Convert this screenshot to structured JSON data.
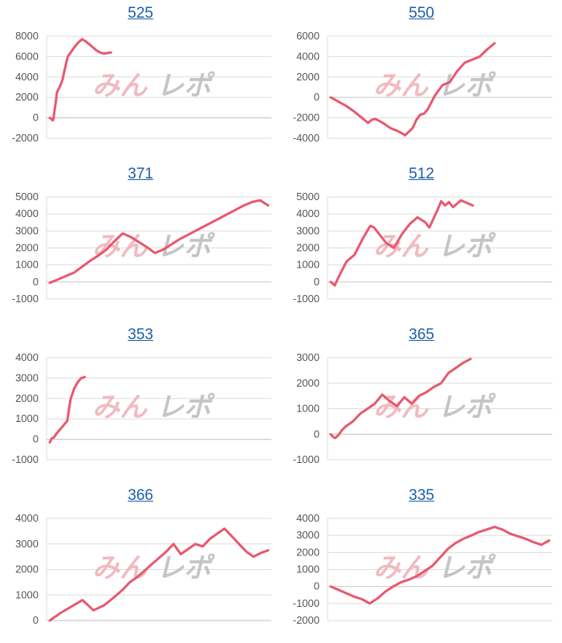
{
  "colors": {
    "line": "#e8586f",
    "grid": "#dddddd",
    "axis": "#cccccc",
    "title": "#1a5fa8",
    "watermark_pink": "#eeb0b7",
    "watermark_gray": "#bbbbbb"
  },
  "watermark": "みんレポ",
  "chart_data": [
    {
      "type": "line",
      "title": "525",
      "ylim": [
        -2000,
        8000
      ],
      "ticks": [
        8000,
        6000,
        4000,
        2000,
        0,
        -2000
      ],
      "grid": true,
      "series": [
        {
          "x": [
            0,
            2,
            4,
            5,
            6,
            8,
            10,
            12,
            15,
            18,
            20,
            25,
            30,
            35,
            40,
            45,
            50,
            55,
            60,
            65,
            70,
            75,
            80,
            85
          ],
          "values": [
            0,
            -100,
            -250,
            -150,
            400,
            1400,
            2500,
            2800,
            3200,
            3800,
            4500,
            6000,
            6500,
            7000,
            7400,
            7700,
            7500,
            7200,
            6900,
            6600,
            6400,
            6300,
            6350,
            6400
          ]
        }
      ]
    },
    {
      "type": "line",
      "title": "550",
      "ylim": [
        -4000,
        6000
      ],
      "ticks": [
        6000,
        4000,
        2000,
        0,
        -2000,
        -4000
      ],
      "grid": true,
      "series": [
        {
          "x": [
            0,
            10,
            20,
            30,
            40,
            50,
            55,
            60,
            70,
            80,
            90,
            100,
            110,
            115,
            120,
            125,
            130,
            140,
            150,
            160,
            170,
            180,
            190,
            200,
            210,
            220
          ],
          "values": [
            0,
            -400,
            -800,
            -1300,
            -1900,
            -2500,
            -2200,
            -2100,
            -2500,
            -3000,
            -3300,
            -3700,
            -3000,
            -2200,
            -1700,
            -1600,
            -1200,
            200,
            1200,
            1500,
            2600,
            3400,
            3700,
            4000,
            4700,
            5300
          ]
        }
      ]
    },
    {
      "type": "line",
      "title": "371",
      "ylim": [
        -1000,
        5000
      ],
      "ticks": [
        5000,
        4000,
        3000,
        2000,
        1000,
        0,
        -1000
      ],
      "grid": true,
      "series": [
        {
          "x": [
            0,
            10,
            20,
            30,
            40,
            50,
            60,
            70,
            80,
            90,
            100,
            110,
            120,
            130,
            140,
            150,
            160,
            170,
            180,
            190,
            200,
            210,
            220,
            230,
            240,
            250,
            260,
            270
          ],
          "values": [
            -50,
            150,
            350,
            550,
            900,
            1250,
            1550,
            1900,
            2400,
            2850,
            2650,
            2350,
            2050,
            1700,
            1900,
            2200,
            2500,
            2750,
            3000,
            3250,
            3500,
            3750,
            4000,
            4250,
            4500,
            4700,
            4800,
            4500
          ]
        }
      ]
    },
    {
      "type": "line",
      "title": "512",
      "ylim": [
        -1000,
        5000
      ],
      "ticks": [
        5000,
        4000,
        3000,
        2000,
        1000,
        0,
        -1000
      ],
      "grid": true,
      "series": [
        {
          "x": [
            0,
            5,
            10,
            20,
            30,
            40,
            50,
            55,
            60,
            70,
            80,
            90,
            100,
            110,
            120,
            125,
            130,
            135,
            140,
            145,
            150,
            155,
            160,
            165,
            170,
            180
          ],
          "values": [
            0,
            -200,
            300,
            1200,
            1600,
            2500,
            3300,
            3200,
            2900,
            2300,
            2000,
            2800,
            3400,
            3800,
            3500,
            3200,
            3700,
            4200,
            4750,
            4500,
            4700,
            4400,
            4600,
            4800,
            4700,
            4500
          ]
        }
      ]
    },
    {
      "type": "line",
      "title": "353",
      "ylim": [
        -1000,
        4000
      ],
      "ticks": [
        4000,
        3000,
        2000,
        1000,
        0,
        -1000
      ],
      "grid": true,
      "series": [
        {
          "x": [
            0,
            3,
            6,
            10,
            15,
            20,
            25,
            28,
            30,
            35,
            40,
            45,
            50
          ],
          "values": [
            -150,
            50,
            100,
            300,
            500,
            700,
            900,
            1600,
            2000,
            2500,
            2800,
            3000,
            3050
          ]
        }
      ]
    },
    {
      "type": "line",
      "title": "365",
      "ylim": [
        -1000,
        3000
      ],
      "ticks": [
        3000,
        2000,
        1000,
        0,
        -1000
      ],
      "grid": true,
      "series": [
        {
          "x": [
            0,
            3,
            6,
            10,
            15,
            20,
            30,
            40,
            50,
            60,
            70,
            80,
            90,
            100,
            110,
            120,
            130,
            140,
            150,
            160,
            170,
            180,
            190
          ],
          "values": [
            0,
            -100,
            -150,
            -50,
            150,
            300,
            500,
            800,
            1000,
            1200,
            1550,
            1300,
            1100,
            1450,
            1200,
            1500,
            1650,
            1850,
            2000,
            2400,
            2600,
            2800,
            2950
          ]
        }
      ]
    },
    {
      "type": "line",
      "title": "366",
      "ylim": [
        0,
        4000
      ],
      "ticks": [
        4000,
        3000,
        2000,
        1000,
        0
      ],
      "grid": true,
      "series": [
        {
          "x": [
            0,
            15,
            30,
            45,
            60,
            75,
            90,
            100,
            110,
            120,
            130,
            140,
            150,
            160,
            170,
            180,
            190,
            200,
            210,
            220,
            230,
            240,
            250,
            260,
            270,
            280,
            290,
            300
          ],
          "values": [
            0,
            300,
            550,
            800,
            400,
            600,
            950,
            1200,
            1500,
            1700,
            1950,
            2200,
            2450,
            2700,
            3000,
            2600,
            2800,
            3000,
            2900,
            3200,
            3400,
            3600,
            3300,
            3000,
            2700,
            2500,
            2650,
            2750
          ]
        }
      ]
    },
    {
      "type": "line",
      "title": "335",
      "ylim": [
        -2000,
        4000
      ],
      "ticks": [
        4000,
        3000,
        2000,
        1000,
        0,
        -1000,
        -2000
      ],
      "grid": true,
      "series": [
        {
          "x": [
            0,
            10,
            20,
            30,
            40,
            50,
            60,
            70,
            80,
            90,
            100,
            110,
            120,
            130,
            140,
            150,
            160,
            170,
            180,
            190,
            200,
            210,
            220,
            230,
            240,
            250,
            260,
            270,
            280
          ],
          "values": [
            0,
            -200,
            -400,
            -600,
            -750,
            -1000,
            -700,
            -300,
            0,
            250,
            400,
            600,
            900,
            1200,
            1700,
            2200,
            2550,
            2800,
            3000,
            3200,
            3350,
            3500,
            3350,
            3100,
            2950,
            2800,
            2600,
            2450,
            2700
          ]
        }
      ]
    }
  ]
}
